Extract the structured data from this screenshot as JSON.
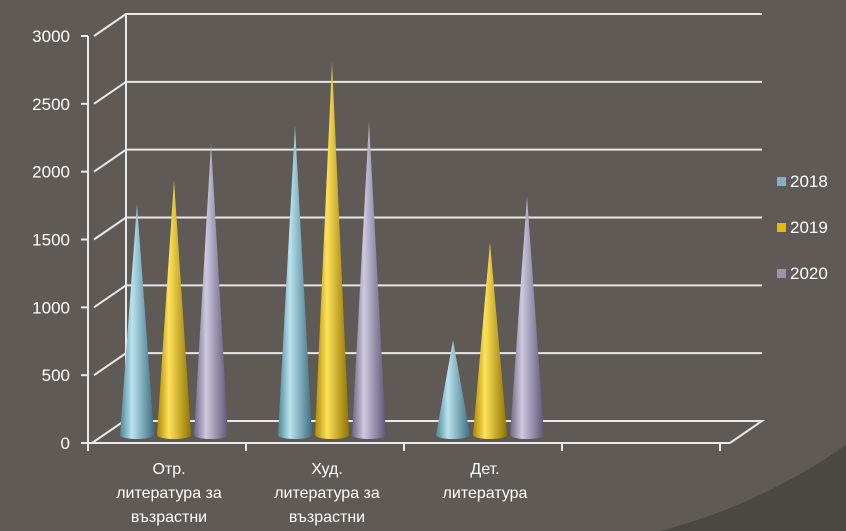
{
  "colors": {
    "background": "#5f5a55",
    "grid": "#e8e8e8"
  },
  "chart_data": {
    "type": "bar",
    "bar_shape": "cone-3d",
    "categories": [
      [
        "Отр.",
        "литература за",
        "възрастни"
      ],
      [
        "Худ.",
        "литература за",
        "възрастни"
      ],
      [
        "Дет.",
        "литература"
      ]
    ],
    "series": [
      {
        "name": "2018",
        "color": "#7fb3c3",
        "values": [
          1700,
          2280,
          700
        ]
      },
      {
        "name": "2019",
        "color": "#e2bd08",
        "values": [
          1880,
          2750,
          1420
        ]
      },
      {
        "name": "2020",
        "color": "#9c92b1",
        "values": [
          2150,
          2310,
          1760
        ]
      }
    ],
    "yticks": [
      0,
      500,
      1000,
      1500,
      2000,
      2500,
      3000
    ],
    "ylim": [
      0,
      3000
    ],
    "grid": true,
    "legend": "right",
    "title": "",
    "xlabel": "",
    "ylabel": ""
  }
}
